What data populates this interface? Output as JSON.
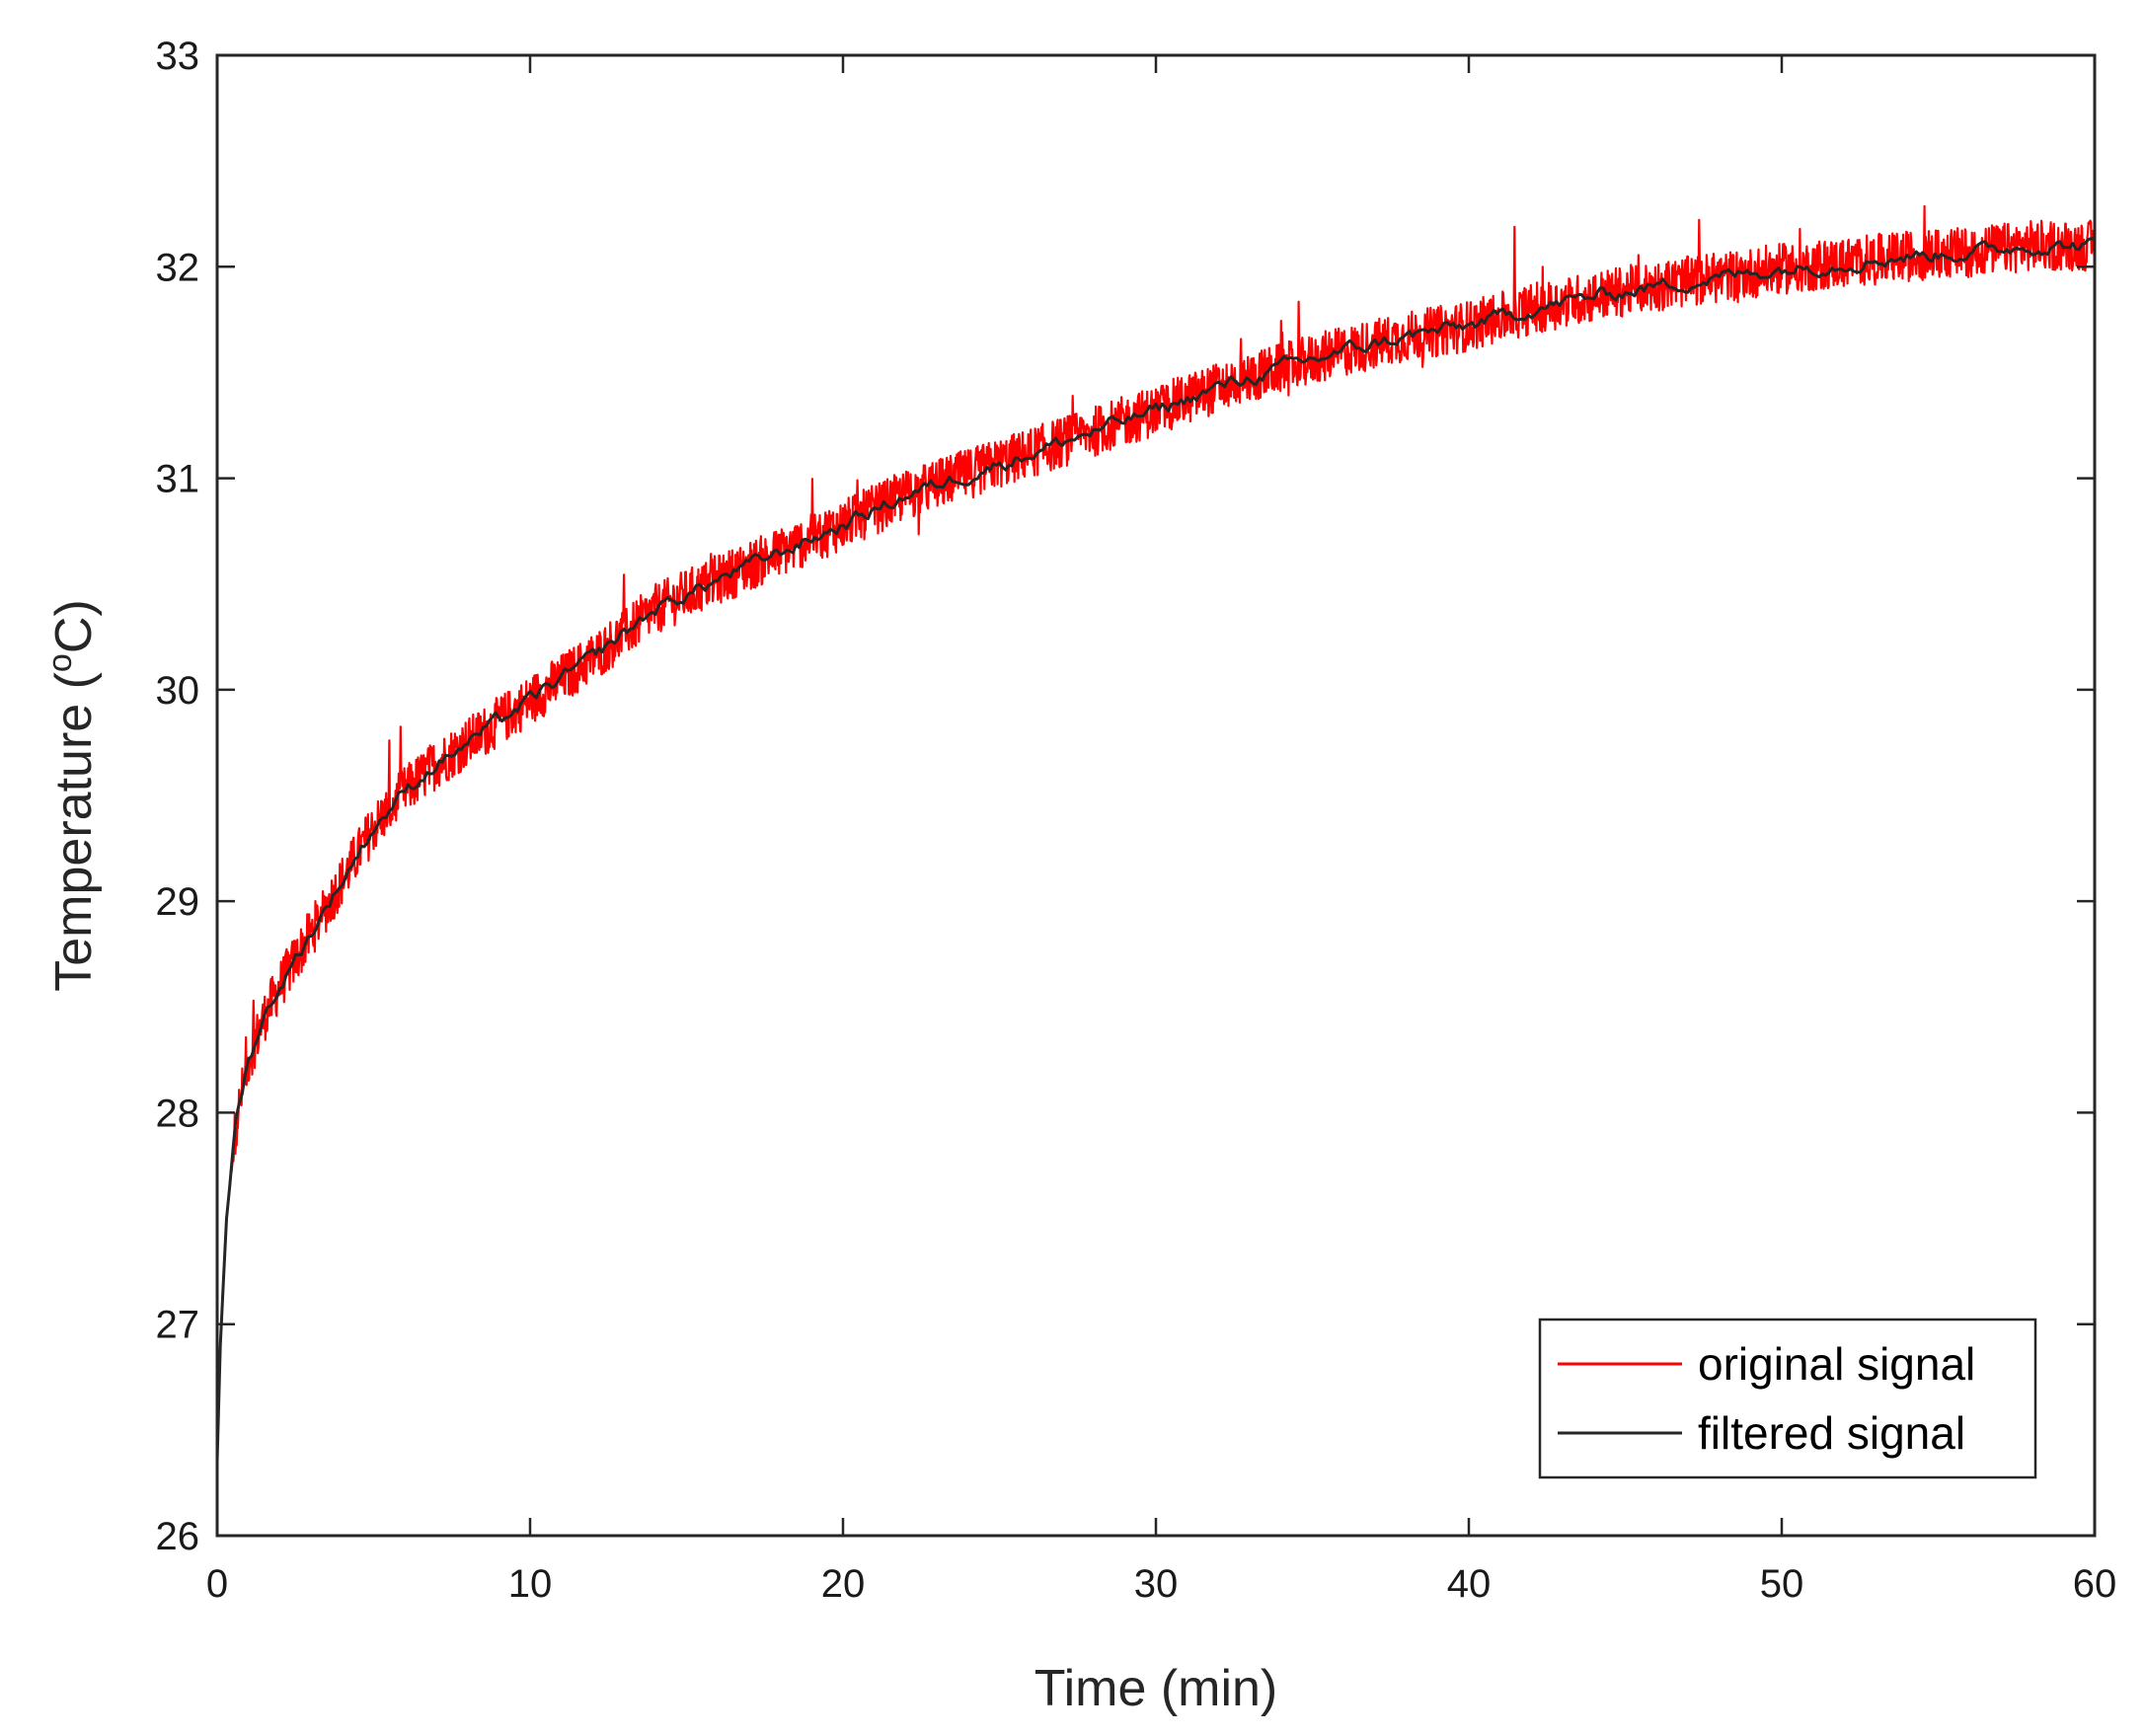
{
  "chart_data": {
    "type": "line",
    "title": "",
    "xlabel": "Time (min)",
    "ylabel_main": "Temperature (",
    "ylabel_sup": "o",
    "ylabel_end": "C)",
    "xlim": [
      0,
      60
    ],
    "ylim": [
      26,
      33
    ],
    "xticks": [
      0,
      10,
      20,
      30,
      40,
      50,
      60
    ],
    "yticks": [
      26,
      27,
      28,
      29,
      30,
      31,
      32,
      33
    ],
    "grid": false,
    "legend_position": "bottom-right",
    "series": [
      {
        "name": "original signal",
        "color": "#ff0000",
        "noise_amplitude": 0.12,
        "x": [
          0,
          0.1,
          0.3,
          0.6,
          1,
          1.5,
          2,
          3,
          4,
          5,
          6,
          7,
          8,
          10,
          12,
          14,
          16,
          18,
          20,
          22,
          24,
          26,
          28,
          30,
          32,
          34,
          36,
          38,
          40,
          42,
          44,
          46,
          48,
          50,
          52,
          54,
          56,
          58,
          60
        ],
        "y": [
          26.35,
          26.9,
          27.5,
          27.95,
          28.25,
          28.45,
          28.6,
          28.85,
          29.1,
          29.35,
          29.52,
          29.65,
          29.75,
          29.95,
          30.15,
          30.38,
          30.52,
          30.65,
          30.78,
          30.92,
          31.02,
          31.12,
          31.22,
          31.32,
          31.43,
          31.52,
          31.6,
          31.67,
          31.72,
          31.8,
          31.86,
          31.91,
          31.95,
          31.99,
          32.02,
          32.05,
          32.07,
          32.1,
          32.1
        ]
      },
      {
        "name": "filtered signal",
        "color": "#262626",
        "x": [
          0,
          0.1,
          0.3,
          0.6,
          1,
          1.5,
          2,
          3,
          4,
          5,
          6,
          7,
          8,
          10,
          12,
          14,
          16,
          18,
          20,
          22,
          24,
          26,
          28,
          30,
          32,
          34,
          36,
          38,
          40,
          42,
          44,
          46,
          48,
          50,
          52,
          54,
          56,
          58,
          60
        ],
        "y": [
          26.35,
          26.9,
          27.5,
          27.95,
          28.25,
          28.45,
          28.6,
          28.85,
          29.1,
          29.35,
          29.52,
          29.65,
          29.75,
          29.95,
          30.15,
          30.38,
          30.52,
          30.65,
          30.78,
          30.92,
          31.02,
          31.12,
          31.22,
          31.32,
          31.43,
          31.52,
          31.6,
          31.67,
          31.72,
          31.8,
          31.86,
          31.91,
          31.95,
          31.99,
          32.02,
          32.05,
          32.07,
          32.1,
          32.1
        ]
      }
    ]
  }
}
